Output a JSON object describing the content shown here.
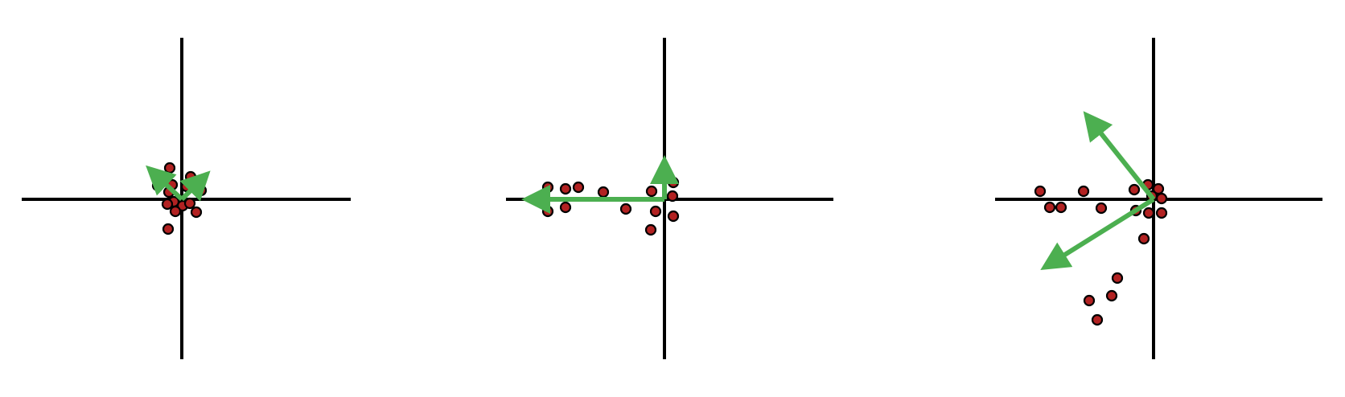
{
  "colors": {
    "background": "#ffffff",
    "axis": "#000000",
    "point_fill": "#b22222",
    "point_stroke": "#000000",
    "arrow": "#4caf50"
  },
  "panels": [
    {
      "name": "panel-1",
      "points": [
        [
          -15,
          39
        ],
        [
          11,
          28
        ],
        [
          -30,
          17
        ],
        [
          -12,
          18
        ],
        [
          6,
          16
        ],
        [
          24,
          11
        ],
        [
          -16,
          9
        ],
        [
          -10,
          -3
        ],
        [
          1,
          -8
        ],
        [
          10,
          -5
        ],
        [
          -18,
          -6
        ],
        [
          -8,
          -15
        ],
        [
          18,
          -16
        ],
        [
          -17,
          -37
        ]
      ],
      "arrows": [
        {
          "name": "principal-axis-1",
          "to": [
            -34,
            32
          ]
        },
        {
          "name": "principal-axis-2",
          "to": [
            25,
            25
          ]
        }
      ]
    },
    {
      "name": "panel-2",
      "points": [
        [
          -145,
          15
        ],
        [
          -123,
          13
        ],
        [
          -107,
          15
        ],
        [
          -76,
          9
        ],
        [
          -16,
          10
        ],
        [
          11,
          21
        ],
        [
          10,
          4
        ],
        [
          -48,
          -12
        ],
        [
          -145,
          -15
        ],
        [
          -123,
          -10
        ],
        [
          -11,
          -15
        ],
        [
          11,
          -21
        ],
        [
          -17,
          -38
        ]
      ],
      "arrows": [
        {
          "name": "principal-axis-1",
          "to": [
            -163,
            0
          ]
        },
        {
          "name": "principal-axis-2",
          "to": [
            0,
            40
          ]
        }
      ]
    },
    {
      "name": "panel-3",
      "points": [
        [
          -141,
          10
        ],
        [
          -87,
          10
        ],
        [
          -129,
          -10
        ],
        [
          -115,
          -10
        ],
        [
          -65,
          -11
        ],
        [
          -24,
          12
        ],
        [
          -7,
          18
        ],
        [
          6,
          13
        ],
        [
          -2,
          4
        ],
        [
          10,
          1
        ],
        [
          -22,
          -14
        ],
        [
          -6,
          -17
        ],
        [
          10,
          -17
        ],
        [
          -12,
          -49
        ],
        [
          -45,
          -98
        ],
        [
          -52,
          -120
        ],
        [
          -80,
          -126
        ],
        [
          -70,
          -150
        ]
      ],
      "arrows": [
        {
          "name": "principal-axis-1",
          "to": [
            -78,
            98
          ]
        },
        {
          "name": "principal-axis-2",
          "to": [
            -128,
            -80
          ]
        }
      ]
    }
  ]
}
